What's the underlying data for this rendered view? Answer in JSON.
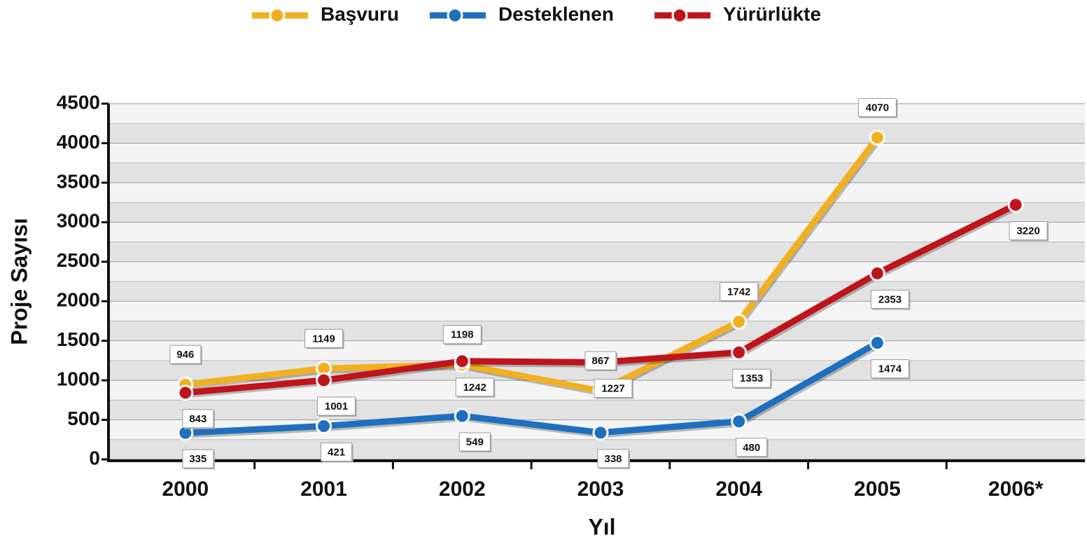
{
  "chart_data": {
    "type": "line",
    "x_label": "Yıl",
    "y_label": "Proje Sayısı",
    "categories": [
      "2000",
      "2001",
      "2002",
      "2003",
      "2004",
      "2005",
      "2006*"
    ],
    "series": [
      {
        "name": "Başvuru",
        "color": "#f0b020",
        "values": [
          946,
          1149,
          1198,
          867,
          1742,
          4070,
          null
        ]
      },
      {
        "name": "Desteklenen",
        "color": "#1e6fc0",
        "values": [
          335,
          421,
          549,
          338,
          480,
          1474,
          null
        ]
      },
      {
        "name": "Yürürlükte",
        "color": "#c0141c",
        "values": [
          843,
          1001,
          1242,
          1227,
          1353,
          2353,
          3220
        ]
      }
    ],
    "ylim": [
      0,
      4500
    ],
    "yticks": [
      0,
      500,
      1000,
      1500,
      2000,
      2500,
      3000,
      3500,
      4000,
      4500
    ],
    "grid": true,
    "legend": "top"
  }
}
